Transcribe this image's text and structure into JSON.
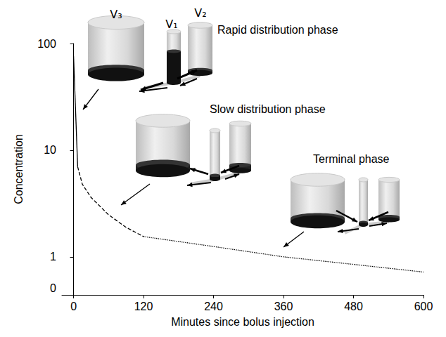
{
  "chart_data": {
    "type": "line",
    "x_label": "Minutes since bolus injection",
    "y_label": "Concentration",
    "log": "y",
    "grid": false,
    "xlim": [
      -20,
      600
    ],
    "xticks": [
      0,
      120,
      240,
      360,
      480,
      600
    ],
    "ylim": [
      0.44,
      100
    ],
    "yticks": [
      1,
      10,
      100
    ],
    "series": [
      {
        "x": [
          0,
          7
        ],
        "values": [
          76,
          7
        ],
        "line_style": "solid",
        "color": "#000000"
      },
      {
        "x": [
          7,
          15,
          30,
          60,
          90,
          120
        ],
        "values": [
          7,
          4.8,
          3.6,
          2.48,
          1.89,
          1.55
        ],
        "line_style": "dashed",
        "color": "#000000"
      },
      {
        "x": [
          120,
          240,
          360,
          480,
          600
        ],
        "values": [
          1.55,
          1.25,
          1.0,
          0.85,
          0.72
        ],
        "line_style": "dotted",
        "color": "#000000"
      }
    ],
    "annotations": [
      {
        "text": "Rapid distribution phase"
      },
      {
        "text": "Slow distribution phase"
      },
      {
        "text": "Terminal phase"
      },
      {
        "text": "V₃"
      },
      {
        "text": "V₁"
      },
      {
        "text": "V₂"
      },
      {
        "text": "0"
      }
    ]
  }
}
